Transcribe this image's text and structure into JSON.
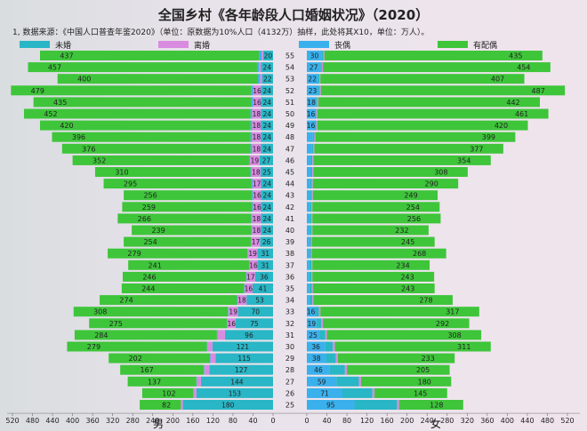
{
  "title": "全国乡村《各年龄段人口婚姻状况》（2020）",
  "source": "1, 数据来源：《中国人口普查年鉴2020》（单位：原数据为10%人口（4132万）抽样，此处将其X10，单位：万人）。",
  "sex_labels": {
    "male": "男",
    "female": "女"
  },
  "legend": [
    {
      "label": "未婚",
      "color": "#29b6c6"
    },
    {
      "label": "离婚",
      "color": "#d98be0"
    },
    {
      "label": "丧偶",
      "color": "#3ab0ec"
    },
    {
      "label": "有配偶",
      "color": "#3ec53a"
    }
  ],
  "chart_data": {
    "type": "bar",
    "orientation": "horizontal",
    "layout": "population-pyramid",
    "title": "全国乡村《各年龄段人口婚姻状况》（2020）",
    "x_ticks": [
      520,
      480,
      440,
      400,
      360,
      320,
      280,
      240,
      200,
      160,
      120,
      80,
      40,
      0
    ],
    "xlim": [
      0,
      520
    ],
    "ages": [
      55,
      54,
      53,
      52,
      51,
      50,
      49,
      48,
      47,
      46,
      45,
      44,
      43,
      42,
      41,
      40,
      39,
      38,
      37,
      36,
      35,
      34,
      33,
      32,
      31,
      30,
      29,
      28,
      27,
      26,
      25
    ],
    "male": {
      "never_married": [
        20,
        24,
        22,
        24,
        24,
        24,
        24,
        24,
        24,
        27,
        25,
        24,
        24,
        24,
        24,
        24,
        26,
        31,
        31,
        36,
        41,
        53,
        70,
        75,
        96,
        121,
        115,
        127,
        144,
        153,
        180
      ],
      "divorced": [
        3,
        4,
        4,
        16,
        16,
        18,
        18,
        18,
        18,
        19,
        18,
        17,
        16,
        16,
        18,
        18,
        17,
        19,
        16,
        17,
        16,
        18,
        19,
        16,
        15,
        10,
        10,
        10,
        8,
        6,
        4
      ],
      "widowed": [
        5,
        4,
        4,
        4,
        3,
        3,
        3,
        3,
        3,
        2,
        2,
        2,
        2,
        2,
        2,
        1,
        1,
        1,
        1,
        1,
        1,
        1,
        1,
        1,
        1,
        1,
        1,
        1,
        1,
        0,
        0
      ],
      "married": [
        437,
        457,
        400,
        479,
        435,
        452,
        420,
        396,
        376,
        352,
        310,
        295,
        256,
        259,
        266,
        239,
        254,
        279,
        241,
        246,
        244,
        274,
        308,
        275,
        284,
        279,
        202,
        167,
        137,
        102,
        82
      ]
    },
    "female": {
      "never_married": [
        3,
        3,
        3,
        3,
        3,
        3,
        3,
        3,
        3,
        3,
        3,
        3,
        3,
        3,
        3,
        3,
        3,
        3,
        4,
        4,
        5,
        6,
        8,
        10,
        12,
        16,
        20,
        30,
        45,
        60,
        85
      ],
      "divorced": [
        2,
        2,
        2,
        2,
        2,
        2,
        2,
        2,
        2,
        2,
        2,
        2,
        2,
        2,
        2,
        2,
        2,
        2,
        2,
        2,
        2,
        2,
        3,
        3,
        3,
        4,
        4,
        4,
        4,
        4,
        4
      ],
      "widowed": [
        30,
        27,
        22,
        23,
        18,
        16,
        16,
        12,
        10,
        8,
        8,
        7,
        7,
        6,
        6,
        6,
        5,
        5,
        5,
        5,
        5,
        5,
        16,
        19,
        25,
        36,
        38,
        46,
        59,
        71,
        95
      ],
      "married": [
        435,
        454,
        407,
        487,
        442,
        461,
        420,
        399,
        377,
        354,
        308,
        290,
        249,
        254,
        256,
        232,
        245,
        268,
        234,
        243,
        243,
        278,
        317,
        292,
        308,
        311,
        233,
        205,
        180,
        145,
        128
      ]
    }
  }
}
